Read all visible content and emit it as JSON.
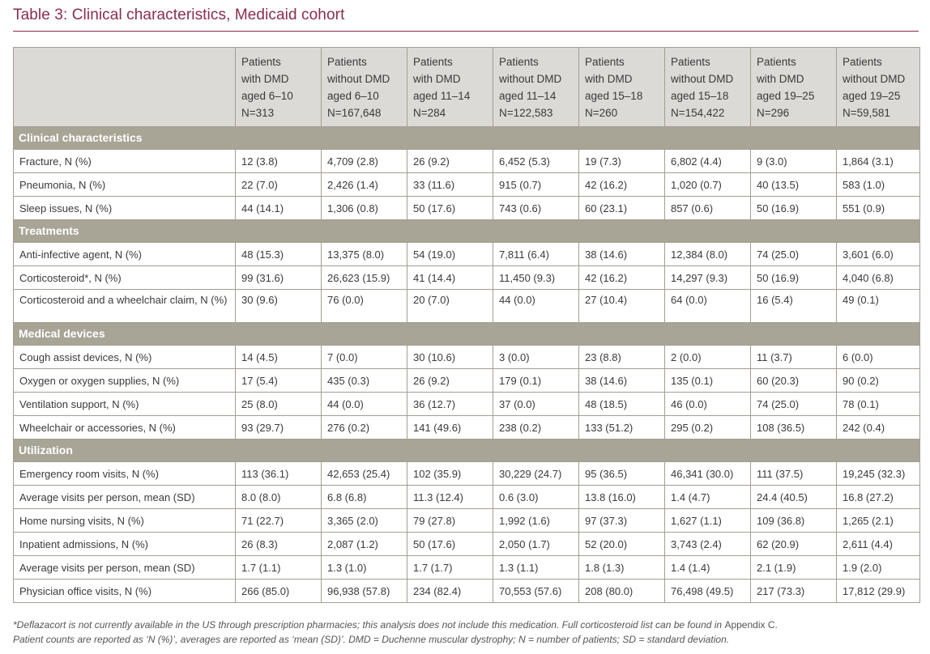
{
  "title": "Table 3: Clinical characteristics, Medicaid cohort",
  "columns": [
    [
      "Patients",
      "with DMD",
      "aged 6–10",
      "N=313"
    ],
    [
      "Patients",
      "without DMD",
      "aged 6–10",
      "N=167,648"
    ],
    [
      "Patients",
      "with DMD",
      "aged 11–14",
      "N=284"
    ],
    [
      "Patients",
      "without DMD",
      "aged 11–14",
      "N=122,583"
    ],
    [
      "Patients",
      "with DMD",
      "aged 15–18",
      "N=260"
    ],
    [
      "Patients",
      "without DMD",
      "aged 15–18",
      "N=154,422"
    ],
    [
      "Patients",
      "with DMD",
      "aged 19–25",
      "N=296"
    ],
    [
      "Patients",
      "without DMD",
      "aged 19–25",
      "N=59,581"
    ]
  ],
  "sections": [
    {
      "name": "Clinical characteristics",
      "rows": [
        {
          "label": "Fracture, N (%)",
          "values": [
            "12 (3.8)",
            "4,709 (2.8)",
            "26 (9.2)",
            "6,452 (5.3)",
            "19 (7.3)",
            "6,802 (4.4)",
            "9 (3.0)",
            "1,864 (3.1)"
          ]
        },
        {
          "label": "Pneumonia, N (%)",
          "values": [
            "22 (7.0)",
            "2,426 (1.4)",
            "33 (11.6)",
            "915 (0.7)",
            "42 (16.2)",
            "1,020 (0.7)",
            "40 (13.5)",
            "583 (1.0)"
          ]
        },
        {
          "label": "Sleep issues, N (%)",
          "values": [
            "44 (14.1)",
            "1,306 (0.8)",
            "50 (17.6)",
            "743 (0.6)",
            "60 (23.1)",
            "857 (0.6)",
            "50 (16.9)",
            "551 (0.9)"
          ]
        }
      ]
    },
    {
      "name": "Treatments",
      "rows": [
        {
          "label": "Anti-infective agent, N (%)",
          "values": [
            "48 (15.3)",
            "13,375 (8.0)",
            "54 (19.0)",
            "7,811 (6.4)",
            "38 (14.6)",
            "12,384 (8.0)",
            "74 (25.0)",
            "3,601 (6.0)"
          ]
        },
        {
          "label": "Corticosteroid*, N (%)",
          "values": [
            "99 (31.6)",
            "26,623 (15.9)",
            "41 (14.4)",
            "11,450 (9.3)",
            "42 (16.2)",
            "14,297 (9.3)",
            "50 (16.9)",
            "4,040 (6.8)"
          ]
        },
        {
          "label": "Corticosteroid and a wheelchair claim, N (%)",
          "tall": true,
          "values": [
            "30 (9.6)",
            "76 (0.0)",
            "20 (7.0)",
            "44 (0.0)",
            "27 (10.4)",
            "64 (0.0)",
            "16 (5.4)",
            "49 (0.1)"
          ]
        }
      ]
    },
    {
      "name": "Medical devices",
      "rows": [
        {
          "label": "Cough assist devices, N (%)",
          "values": [
            "14 (4.5)",
            "7 (0.0)",
            "30 (10.6)",
            "3 (0.0)",
            "23 (8.8)",
            "2 (0.0)",
            "11 (3.7)",
            "6 (0.0)"
          ]
        },
        {
          "label": "Oxygen or oxygen supplies, N (%)",
          "values": [
            "17 (5.4)",
            "435 (0.3)",
            "26 (9.2)",
            "179 (0.1)",
            "38 (14.6)",
            "135 (0.1)",
            "60 (20.3)",
            "90 (0.2)"
          ]
        },
        {
          "label": "Ventilation support, N (%)",
          "values": [
            "25 (8.0)",
            "44 (0.0)",
            "36 (12.7)",
            "37 (0.0)",
            "48 (18.5)",
            "46 (0.0)",
            "74 (25.0)",
            "78 (0.1)"
          ]
        },
        {
          "label": "Wheelchair or accessories, N (%)",
          "values": [
            "93 (29.7)",
            "276 (0.2)",
            "141 (49.6)",
            "238 (0.2)",
            "133 (51.2)",
            "295 (0.2)",
            "108 (36.5)",
            "242 (0.4)"
          ]
        }
      ]
    },
    {
      "name": "Utilization",
      "rows": [
        {
          "label": "Emergency room visits, N (%)",
          "values": [
            "113 (36.1)",
            "42,653 (25.4)",
            "102 (35.9)",
            "30,229 (24.7)",
            "95 (36.5)",
            "46,341 (30.0)",
            "111 (37.5)",
            "19,245 (32.3)"
          ]
        },
        {
          "label": "Average visits per person, mean (SD)",
          "values": [
            "8.0 (8.0)",
            "6.8 (6.8)",
            "11.3 (12.4)",
            "0.6 (3.0)",
            "13.8 (16.0)",
            "1.4 (4.7)",
            "24.4 (40.5)",
            "16.8 (27.2)"
          ]
        },
        {
          "label": "Home nursing visits, N (%)",
          "values": [
            "71 (22.7)",
            "3,365 (2.0)",
            "79 (27.8)",
            "1,992 (1.6)",
            "97 (37.3)",
            "1,627 (1.1)",
            "109 (36.8)",
            "1,265 (2.1)"
          ]
        },
        {
          "label": "Inpatient admissions, N (%)",
          "values": [
            "26 (8.3)",
            "2,087 (1.2)",
            "50 (17.6)",
            "2,050 (1.7)",
            "52 (20.0)",
            "3,743 (2.4)",
            "62 (20.9)",
            "2,611 (4.4)"
          ]
        },
        {
          "label": "Average visits per person, mean (SD)",
          "values": [
            "1.7 (1.1)",
            "1.3 (1.0)",
            "1.7 (1.7)",
            "1.3 (1.1)",
            "1.8 (1.3)",
            "1.4 (1.4)",
            "2.1 (1.9)",
            "1.9 (2.0)"
          ]
        },
        {
          "label": "Physician office visits, N (%)",
          "values": [
            "266 (85.0)",
            "96,938 (57.8)",
            "234 (82.4)",
            "70,553 (57.6)",
            "208 (80.0)",
            "76,498 (49.5)",
            "217 (73.3)",
            "17,812 (29.9)"
          ]
        }
      ]
    }
  ],
  "footnote": {
    "line1_main": "*Deflazacort is not currently available in the US through prescription pharmacies; this analysis does not include this medication. Full corticosteroid list can be found in ",
    "line1_upright": "Appendix C.",
    "line2": "Patient counts are reported as ‘N (%)’, averages are reported as ‘mean (SD)’. DMD = Duchenne muscular dystrophy; N = number of patients; SD = standard deviation."
  },
  "colors": {
    "title": "#8a2c4e",
    "header_bg": "#dcdad6",
    "section_bg": "#a8a496",
    "border": "#a39e92"
  }
}
